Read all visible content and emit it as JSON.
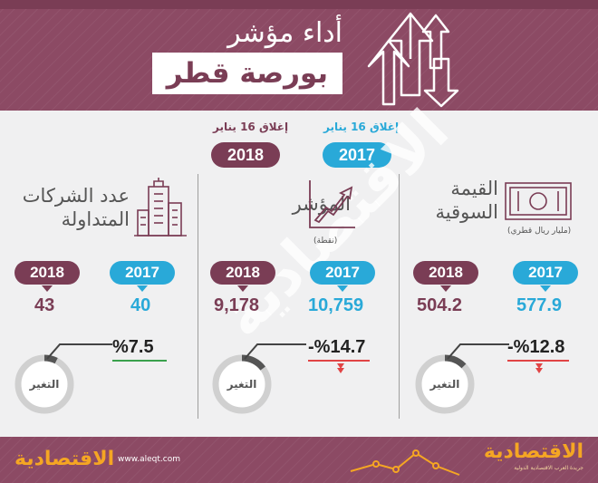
{
  "header": {
    "title_line1": "أداء مؤشر",
    "title_line2": "بورصة قطر"
  },
  "dates": {
    "label_2017": "إغلاق 16 يناير",
    "label_2018": "إغلاق 16 يناير",
    "year_2017": "2017",
    "year_2018": "2018"
  },
  "columns": {
    "market_cap": {
      "title_line1": "القيمة",
      "title_line2": "السوقية",
      "unit": "(مليار ريال قطري)",
      "year_2017": "2017",
      "year_2018": "2018",
      "value_2017": "577.9",
      "value_2018": "504.2",
      "change": "%12.8-",
      "change_label": "التغير",
      "change_fraction": 0.128
    },
    "index": {
      "title": "المؤشر",
      "unit": "(نقطة)",
      "year_2017": "2017",
      "year_2018": "2018",
      "value_2017": "10,759",
      "value_2018": "9,178",
      "change": "%14.7-",
      "change_label": "التغير",
      "change_fraction": 0.147
    },
    "companies": {
      "title_line1": "عدد الشركات",
      "title_line2": "المتداولة",
      "year_2017": "2017",
      "year_2018": "2018",
      "value_2017": "40",
      "value_2018": "43",
      "change": "%7.5",
      "change_label": "التغير",
      "change_fraction": 0.075
    }
  },
  "watermark": "الاقتصادية",
  "footer": {
    "logo_left": "الاقتصادية",
    "url": "www.aleqt.com",
    "logo_right": "الاقتصادية",
    "tagline": "جريدة العرب الاقتصادية الدولية"
  },
  "colors": {
    "plum": "#7a3d55",
    "header_bg": "#8c4a64",
    "teal": "#29a9d8",
    "green": "#3aa14d",
    "red": "#e14445",
    "ring_dark": "#555555",
    "ring_light": "#d0d0d0"
  },
  "icons": [
    "up-down-arrows-icon",
    "banknote-icon",
    "growth-chart-icon",
    "building-icon",
    "ring-gauge-icon"
  ]
}
